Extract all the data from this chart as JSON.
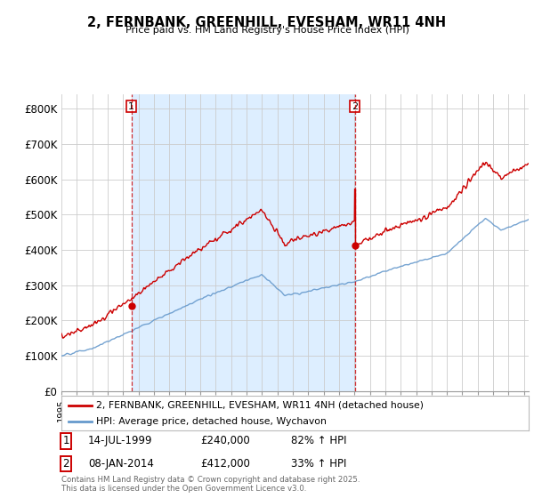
{
  "title": "2, FERNBANK, GREENHILL, EVESHAM, WR11 4NH",
  "subtitle": "Price paid vs. HM Land Registry's House Price Index (HPI)",
  "legend_line1": "2, FERNBANK, GREENHILL, EVESHAM, WR11 4NH (detached house)",
  "legend_line2": "HPI: Average price, detached house, Wychavon",
  "annotation1_label": "1",
  "annotation1_date": "14-JUL-1999",
  "annotation1_price": "£240,000",
  "annotation1_hpi": "82% ↑ HPI",
  "annotation2_label": "2",
  "annotation2_date": "08-JAN-2014",
  "annotation2_price": "£412,000",
  "annotation2_hpi": "33% ↑ HPI",
  "footnote": "Contains HM Land Registry data © Crown copyright and database right 2025.\nThis data is licensed under the Open Government Licence v3.0.",
  "property_color": "#cc0000",
  "hpi_color": "#6699cc",
  "shade_color": "#ddeeff",
  "background_color": "#ffffff",
  "grid_color": "#cccccc",
  "ylim": [
    0,
    840000
  ],
  "yticks": [
    0,
    100000,
    200000,
    300000,
    400000,
    500000,
    600000,
    700000,
    800000
  ],
  "ytick_labels": [
    "£0",
    "£100K",
    "£200K",
    "£300K",
    "£400K",
    "£500K",
    "£600K",
    "£700K",
    "£800K"
  ],
  "sale1_x": 1999.54,
  "sale1_y": 240000,
  "sale2_x": 2014.03,
  "sale2_y": 412000,
  "xmin": 1995.0,
  "xmax": 2025.3
}
